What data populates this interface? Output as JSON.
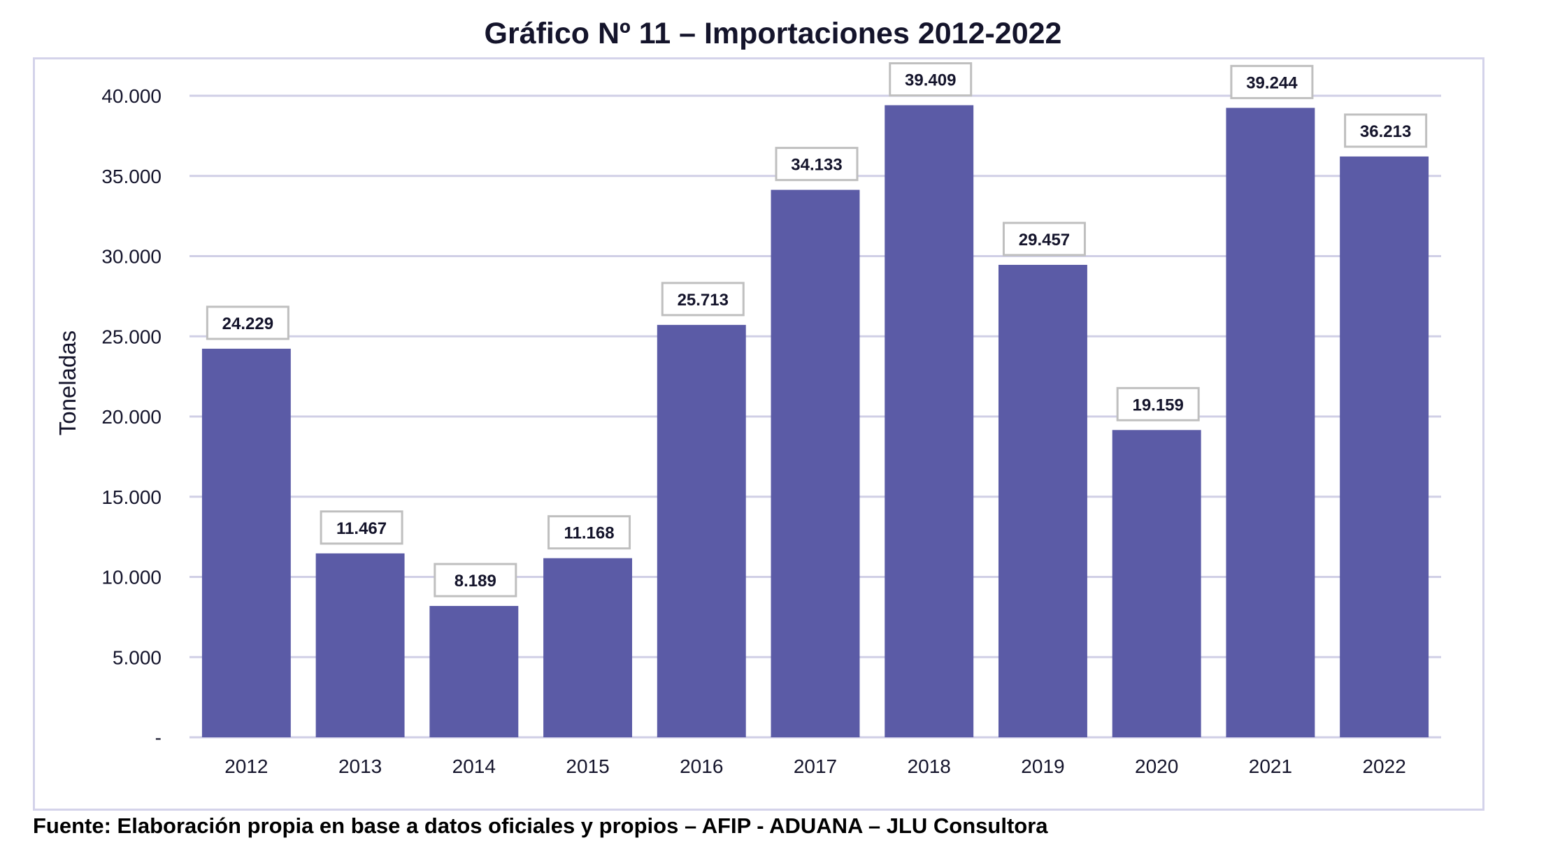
{
  "chart_data": {
    "type": "bar",
    "title": "Gráfico Nº 11 – Importaciones 2012-2022",
    "xlabel": "",
    "ylabel": "Toneladas",
    "categories": [
      "2012",
      "2013",
      "2014",
      "2015",
      "2016",
      "2017",
      "2018",
      "2019",
      "2020",
      "2021",
      "2022"
    ],
    "values": [
      24229,
      11467,
      8189,
      11168,
      25713,
      34133,
      39409,
      29457,
      19159,
      39244,
      36213
    ],
    "value_labels": [
      "24.229",
      "11.467",
      "8.189",
      "11.168",
      "25.713",
      "34.133",
      "39.409",
      "29.457",
      "19.159",
      "39.244",
      "36.213"
    ],
    "ylim": [
      0,
      40000
    ],
    "yticks": [
      0,
      5000,
      10000,
      15000,
      20000,
      25000,
      30000,
      35000,
      40000
    ],
    "ytick_labels": [
      "-",
      "5.000",
      "10.000",
      "15.000",
      "20.000",
      "25.000",
      "30.000",
      "35.000",
      "40.000"
    ],
    "grid": true,
    "legend": "none",
    "colors": {
      "bar": "#5b5ba6",
      "grid": "#d0cfe6",
      "label_border": "#bfbfbf"
    }
  },
  "footer": "Fuente: Elaboración propia en base a datos oficiales y propios – AFIP - ADUANA – JLU Consultora"
}
